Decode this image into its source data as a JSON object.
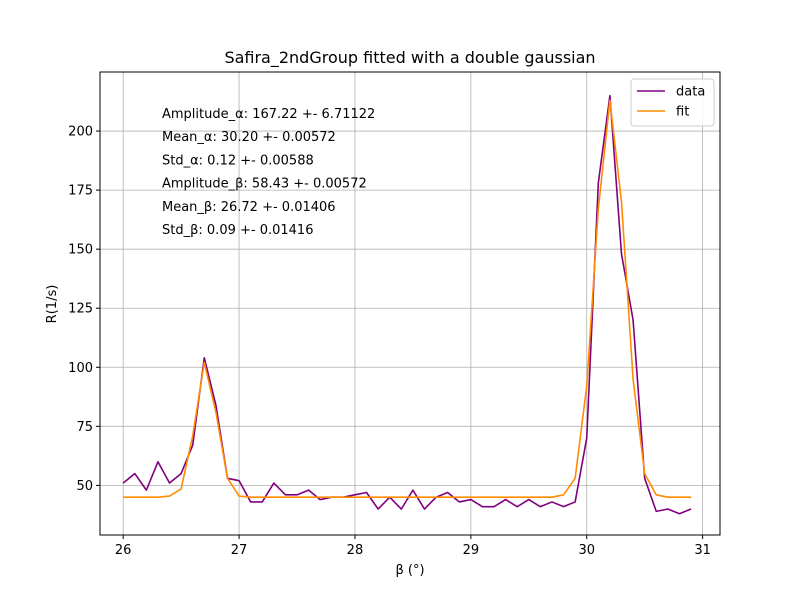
{
  "chart_data": {
    "type": "line",
    "title": "Safira_2ndGroup fitted with a double gaussian",
    "xlabel": "β (°)",
    "ylabel": "R(1/s)",
    "xlim": [
      25.8,
      31.15
    ],
    "ylim": [
      29,
      225
    ],
    "xticks": [
      26,
      27,
      28,
      29,
      30,
      31
    ],
    "xtick_labels": [
      "26",
      "27",
      "28",
      "29",
      "30",
      "31"
    ],
    "yticks": [
      50,
      75,
      100,
      125,
      150,
      175,
      200
    ],
    "ytick_labels": [
      "50",
      "75",
      "100",
      "125",
      "150",
      "175",
      "200"
    ],
    "grid": true,
    "legend_position": "top-right",
    "series": [
      {
        "name": "data",
        "color": "#800080",
        "x": [
          26.0,
          26.1,
          26.2,
          26.3,
          26.4,
          26.5,
          26.6,
          26.7,
          26.8,
          26.9,
          27.0,
          27.1,
          27.2,
          27.3,
          27.4,
          27.5,
          27.6,
          27.7,
          27.8,
          27.9,
          28.0,
          28.1,
          28.2,
          28.3,
          28.4,
          28.5,
          28.6,
          28.7,
          28.8,
          28.9,
          29.0,
          29.1,
          29.2,
          29.3,
          29.4,
          29.5,
          29.6,
          29.7,
          29.8,
          29.9,
          30.0,
          30.1,
          30.2,
          30.3,
          30.4,
          30.5,
          30.6,
          30.7,
          30.8,
          30.9
        ],
        "y": [
          51,
          55,
          48,
          60,
          51,
          55,
          67,
          104,
          84,
          53,
          52,
          43,
          43,
          51,
          46,
          46,
          48,
          44,
          45,
          45,
          46,
          47,
          40,
          45,
          40,
          48,
          40,
          45,
          47,
          43,
          44,
          41,
          41,
          44,
          41,
          44,
          41,
          43,
          41,
          43,
          70,
          178,
          215,
          148,
          120,
          53,
          39,
          40,
          38,
          40
        ]
      },
      {
        "name": "fit",
        "color": "#ff8c00",
        "x": [
          26.0,
          26.1,
          26.2,
          26.3,
          26.4,
          26.5,
          26.6,
          26.7,
          26.8,
          26.9,
          27.0,
          27.1,
          27.2,
          27.3,
          27.4,
          27.5,
          27.6,
          27.7,
          27.8,
          27.9,
          28.0,
          28.1,
          28.2,
          28.3,
          28.4,
          28.5,
          28.6,
          28.7,
          28.8,
          28.9,
          29.0,
          29.1,
          29.2,
          29.3,
          29.4,
          29.5,
          29.6,
          29.7,
          29.8,
          29.9,
          30.0,
          30.1,
          30.2,
          30.3,
          30.4,
          30.5,
          30.6,
          30.7,
          30.8,
          30.9
        ],
        "y": [
          45,
          45,
          45,
          45,
          45.5,
          48.5,
          71,
          102,
          81,
          53,
          45.5,
          45,
          45,
          45,
          45,
          45,
          45,
          45,
          45,
          45,
          45,
          45,
          45,
          45,
          45,
          45,
          45,
          45,
          45,
          45,
          45,
          45,
          45,
          45,
          45,
          45,
          45,
          45,
          46,
          53,
          92,
          167,
          213,
          170,
          95,
          55,
          46,
          45,
          45,
          45
        ]
      }
    ],
    "annotations": [
      "Amplitude_α: 167.22 +- 6.71122",
      "Mean_α: 30.20 +- 0.00572",
      "Std_α: 0.12 +- 0.00588",
      "Amplitude_β: 58.43 +- 0.00572",
      "Mean_β: 26.72 +- 0.01406",
      "Std_β: 0.09 +- 0.01416"
    ]
  }
}
